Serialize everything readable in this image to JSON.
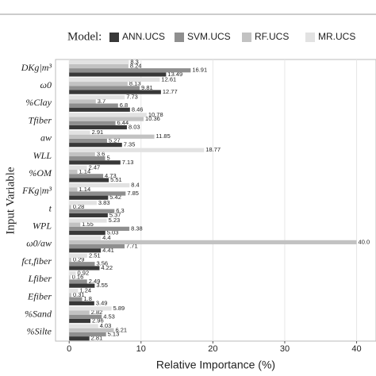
{
  "chart_data": {
    "type": "hbar",
    "legend_title": "Model:",
    "x_label": "Relative Importance (%)",
    "y_label": "Input Variable",
    "categories": [
      "DKg|m³",
      "ω0",
      "%Clay",
      "Tfiber",
      "aw",
      "WLL",
      "%OM",
      "FKg|m³",
      "t",
      "WPL",
      "ω0/aw",
      "fct,fiber",
      "Lfiber",
      "Efiber",
      "%Sand",
      "%Silte"
    ],
    "series": [
      {
        "name": "ANN.UCS",
        "color": "#383838",
        "values": [
          13.49,
          12.77,
          8.46,
          8.03,
          7.35,
          7.13,
          5.51,
          5.42,
          5.37,
          5.03,
          4.41,
          4.22,
          3.55,
          3.49,
          2.96,
          2.81
        ]
      },
      {
        "name": "SVM.UCS",
        "color": "#8f8f8f",
        "values": [
          16.91,
          9.81,
          6.8,
          6.44,
          5.27,
          5,
          4.73,
          7.85,
          6.3,
          8.38,
          7.71,
          3.56,
          2.49,
          1.8,
          4.53,
          5.13
        ]
      },
      {
        "name": "RF.UCS",
        "color": "#c2c2c2",
        "values": [
          8.24,
          8.13,
          3.7,
          10.36,
          11.85,
          3.6,
          1.14,
          1.14,
          0.28,
          1.55,
          40.0,
          0.29,
          0.16,
          0.31,
          2.82,
          6.21
        ],
        "value_labels": [
          "8.24",
          "8.13",
          "3.7",
          "10.36",
          "11.85",
          "3.6",
          "1.14",
          "1.14",
          "0.28",
          "1.55",
          "40.0",
          "0.29",
          "0.16",
          "0.31",
          "2.82",
          "6.21"
        ]
      },
      {
        "name": "MR.UCS",
        "color": "#e2e2e2",
        "values": [
          8.3,
          12.61,
          7.73,
          10.78,
          2.91,
          18.77,
          2.47,
          8.4,
          3.83,
          5.23,
          4.4,
          2.51,
          0.92,
          1.24,
          5.89,
          4.03
        ]
      }
    ],
    "xlim": [
      -1.9,
      42.7
    ],
    "xticks": [
      0,
      10,
      20,
      30,
      40
    ],
    "grid": true
  }
}
